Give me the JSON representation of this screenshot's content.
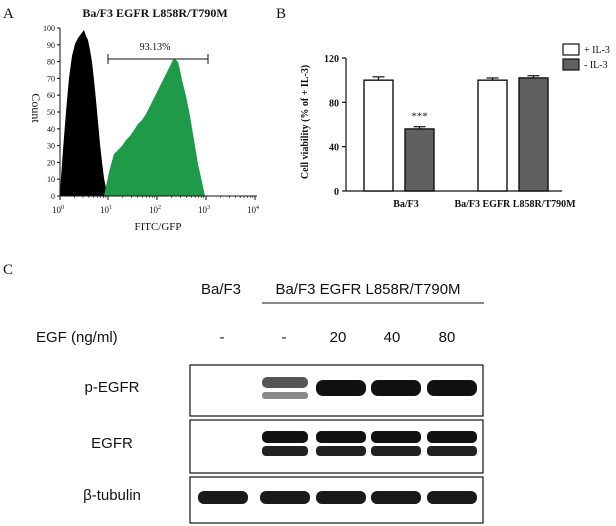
{
  "panel_a": {
    "letter": "A",
    "title": "Ba/F3 EGFR L858R/T790M",
    "ylabel": "Count",
    "xlabel": "FITC/GFP",
    "gate_label": "93.13%",
    "y_ticks": [
      "0",
      "10",
      "20",
      "30",
      "40",
      "50",
      "60",
      "70",
      "80",
      "90",
      "100"
    ],
    "x_ticks": [
      {
        "base": "10",
        "exp": "0"
      },
      {
        "base": "10",
        "exp": "1"
      },
      {
        "base": "10",
        "exp": "2"
      },
      {
        "base": "10",
        "exp": "3"
      },
      {
        "base": "10",
        "exp": "4"
      }
    ],
    "colors": {
      "control": "#000000",
      "gfp": "#1e9a48"
    }
  },
  "panel_b": {
    "letter": "B",
    "significance": "***",
    "colors": {
      "plus": "#ffffff",
      "minus": "#606060"
    }
  },
  "chart_data": {
    "type": "bar",
    "title": "",
    "xlabel": "",
    "ylabel": "Cell viability (% of + IL-3)",
    "categories": [
      "Ba/F3",
      "Ba/F3 EGFR L858R/T790M"
    ],
    "series": [
      {
        "name": "+ IL-3",
        "values": [
          100,
          100
        ],
        "errors": [
          3,
          2
        ]
      },
      {
        "name": "- IL-3",
        "values": [
          56,
          102
        ],
        "errors": [
          2,
          2
        ]
      }
    ],
    "ylim": [
      0,
      120
    ],
    "y_ticks": [
      0,
      40,
      80,
      120
    ],
    "grid": false,
    "legend": "top-right"
  },
  "panel_c": {
    "letter": "C",
    "header_left": "Ba/F3",
    "header_right": "Ba/F3  EGFR  L858R/T790M",
    "egf_label": "EGF (ng/ml)",
    "egf_values": [
      "-",
      "-",
      "20",
      "40",
      "80"
    ],
    "blots": [
      "p-EGFR",
      "EGFR",
      "β-tubulin"
    ]
  }
}
